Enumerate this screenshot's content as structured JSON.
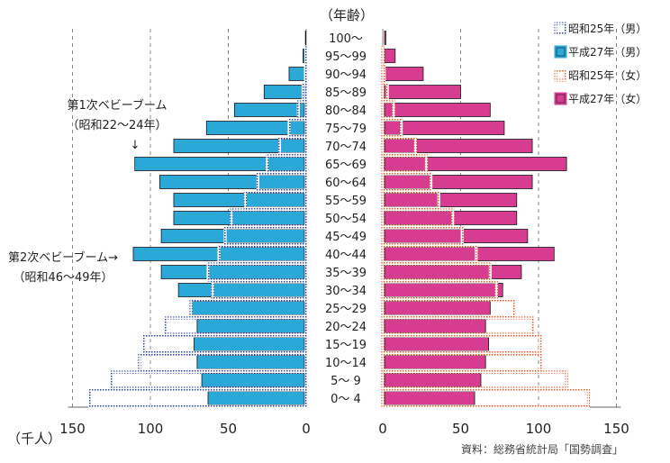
{
  "chart_data": {
    "type": "bar",
    "title": "（年齢）",
    "unit_label": "（千人）",
    "source": "資料：総務省統計局「国勢調査」",
    "axis_ticks_left": [
      "150",
      "100",
      "50",
      "0"
    ],
    "axis_ticks_right": [
      "0",
      "50",
      "100",
      "150"
    ],
    "xlim": [
      0,
      150
    ],
    "grid": true,
    "legend_position": "top-right",
    "categories": [
      "0〜 4",
      "5〜 9",
      "10〜14",
      "15〜19",
      "20〜24",
      "25〜29",
      "30〜34",
      "35〜39",
      "40〜44",
      "45〜49",
      "50〜54",
      "55〜59",
      "60〜64",
      "65〜69",
      "70〜74",
      "75〜79",
      "80〜84",
      "85〜89",
      "90〜94",
      "95〜99",
      "100〜"
    ],
    "series": [
      {
        "name": "昭和25年（男）",
        "side": "left",
        "style": "outline",
        "color": "#2e47a8",
        "values": [
          139,
          125,
          107,
          104,
          90,
          74,
          60,
          63,
          56,
          52,
          48,
          39,
          31,
          25,
          17,
          11,
          5,
          2,
          0.5,
          0.2,
          0
        ]
      },
      {
        "name": "平成27年（男）",
        "side": "left",
        "style": "fill",
        "color": "#2aa8d8",
        "values": [
          63,
          67,
          70,
          72,
          70,
          74,
          82,
          93,
          111,
          93,
          85,
          85,
          94,
          110,
          85,
          64,
          46,
          27,
          11,
          2,
          0.5
        ]
      },
      {
        "name": "昭和25年（女）",
        "side": "right",
        "style": "outline",
        "color": "#e85a2a",
        "values": [
          132,
          118,
          102,
          101,
          96,
          84,
          73,
          69,
          60,
          51,
          45,
          36,
          31,
          28,
          21,
          12,
          7,
          3,
          1,
          0.3,
          0
        ]
      },
      {
        "name": "平成27年（女）",
        "side": "right",
        "style": "fill",
        "color": "#d63c8f",
        "values": [
          59,
          63,
          66,
          68,
          66,
          69,
          77,
          89,
          110,
          93,
          86,
          86,
          96,
          118,
          96,
          78,
          69,
          50,
          26,
          8,
          2
        ]
      }
    ],
    "annotations": [
      {
        "lines": [
          "第1次ベビーブーム",
          "（昭和22〜24年）",
          "↓"
        ],
        "category": "65〜69"
      },
      {
        "lines": [
          "第2次ベビーブーム→",
          "（昭和46〜49年）"
        ],
        "category": "40〜44"
      }
    ]
  }
}
